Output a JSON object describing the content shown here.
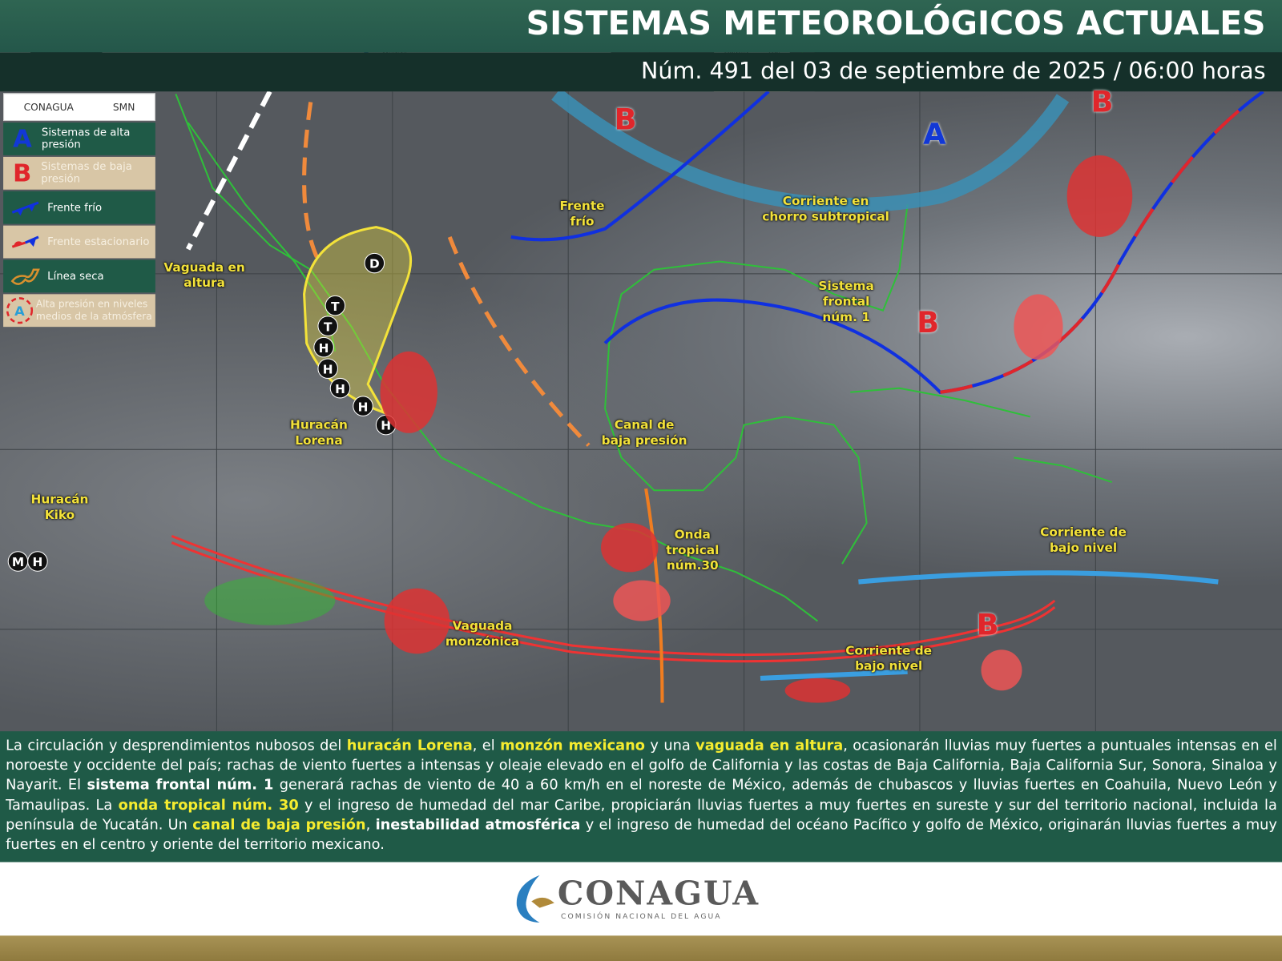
{
  "header": {
    "title": "SISTEMAS METEOROLÓGICOS ACTUALES",
    "subtitle": "Núm. 491 del 03 de septiembre de 2025 / 06:00 horas"
  },
  "legend": {
    "logos": [
      "CONAGUA",
      "SMN"
    ],
    "items": [
      {
        "symbol": "A",
        "label": "Sistemas de alta presión",
        "color": "#1238d6"
      },
      {
        "symbol": "B",
        "label": "Sistemas de baja presión",
        "color": "#e0262b"
      },
      {
        "symbol": "cold-front-icon",
        "label": "Frente frío"
      },
      {
        "symbol": "stationary-front-icon",
        "label": "Frente estacionario"
      },
      {
        "symbol": "dry-line-icon",
        "label": "Línea seca"
      },
      {
        "symbol": "A",
        "label": "Alta presión en niveles medios de la atmósfera"
      }
    ]
  },
  "map": {
    "labels": {
      "vaguada_altura": "Vaguada en altura",
      "frente_frio": "Frente frío",
      "chorro": "Corriente en chorro subtropical",
      "sistema_frontal": "Sistema frontal núm. 1",
      "lorena": "Huracán Lorena",
      "canal": "Canal de baja presión",
      "kiko": "Huracán Kiko",
      "onda": "Onda tropical núm.30",
      "corriente1": "Corriente de bajo nivel",
      "vaguada_monzonica": "Vaguada monzónica",
      "corriente2": "Corriente de bajo nivel"
    },
    "pressure_letters": [
      "B",
      "A",
      "B",
      "B",
      "B"
    ],
    "hurricane_track": [
      "D",
      "T",
      "T",
      "H",
      "H",
      "H",
      "H",
      "H",
      "H"
    ],
    "kiko_marks": "MH",
    "colors": {
      "cold_front": "#1030e0",
      "warm_half": "#e0262b",
      "trough": "#e33",
      "dry_line": "#f08a3c",
      "jet": "#3b8fb5",
      "low_level_jet": "#3a9ee0",
      "coast": "#2fbf3a"
    }
  },
  "bulletin": [
    {
      "t": "La circulación y desprendimientos nubosos del ",
      "s": "n"
    },
    {
      "t": "huracán Lorena",
      "s": "hl"
    },
    {
      "t": ", el ",
      "s": "n"
    },
    {
      "t": "monzón mexicano",
      "s": "hl"
    },
    {
      "t": " y una ",
      "s": "n"
    },
    {
      "t": "vaguada en altura",
      "s": "hl"
    },
    {
      "t": ", ocasionarán lluvias muy fuertes a puntuales intensas en el noroeste y occidente del país; rachas de viento fuertes a intensas y oleaje elevado en el golfo de California y las costas de Baja California, Baja California Sur, Sonora, Sinaloa y Nayarit. El ",
      "s": "n"
    },
    {
      "t": "sistema frontal núm. 1",
      "s": "bw"
    },
    {
      "t": " generará rachas de viento de 40 a 60 km/h en el noreste de México, además de chubascos y lluvias fuertes en Coahuila, Nuevo León y Tamaulipas. La ",
      "s": "n"
    },
    {
      "t": "onda tropical núm. 30",
      "s": "hl"
    },
    {
      "t": " y el ingreso de humedad del mar Caribe, propiciarán lluvias fuertes a muy fuertes en sureste y sur del territorio nacional, incluida la península de Yucatán. Un ",
      "s": "n"
    },
    {
      "t": "canal de baja presión",
      "s": "hl"
    },
    {
      "t": ", ",
      "s": "n"
    },
    {
      "t": "inestabilidad atmosférica",
      "s": "bw"
    },
    {
      "t": " y el ingreso de humedad del océano Pacífico y golfo de México, originarán lluvias fuertes a muy fuertes en el centro y oriente del territorio mexicano.",
      "s": "n"
    }
  ],
  "footer": {
    "logo_name": "CONAGUA",
    "logo_sub": "COMISIÓN NACIONAL DEL AGUA"
  }
}
